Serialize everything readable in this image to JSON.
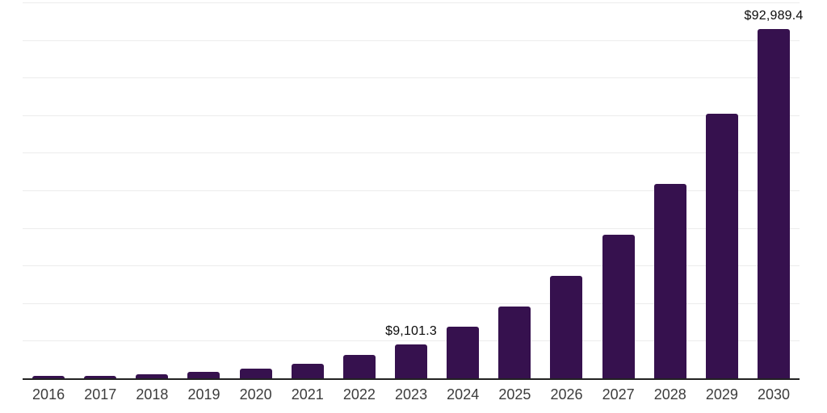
{
  "chart_data": {
    "type": "bar",
    "title": "",
    "xlabel": "",
    "ylabel": "",
    "categories": [
      "2016",
      "2017",
      "2018",
      "2019",
      "2020",
      "2021",
      "2022",
      "2023",
      "2024",
      "2025",
      "2026",
      "2027",
      "2028",
      "2029",
      "2030"
    ],
    "values": [
      580,
      690,
      1170,
      1720,
      2600,
      3950,
      6200,
      9101.3,
      13750,
      19150,
      27300,
      38250,
      51800,
      70400,
      92989.4
    ],
    "bar_labels": [
      "",
      "",
      "",
      "",
      "",
      "",
      "",
      "$9,101.3",
      "",
      "",
      "",
      "",
      "",
      "",
      "$92,989.4"
    ],
    "ylim": [
      0,
      100000
    ],
    "gridline_step": 10000,
    "grid": "horizontal-light",
    "y_tick_labels_visible": false,
    "legend": "none"
  },
  "colors": {
    "bar": "#36114E",
    "gridline": "#ececec",
    "axis": "#222222",
    "tick_label": "#3c3c3c",
    "value_label": "#0a0a0a",
    "background": "#ffffff"
  }
}
